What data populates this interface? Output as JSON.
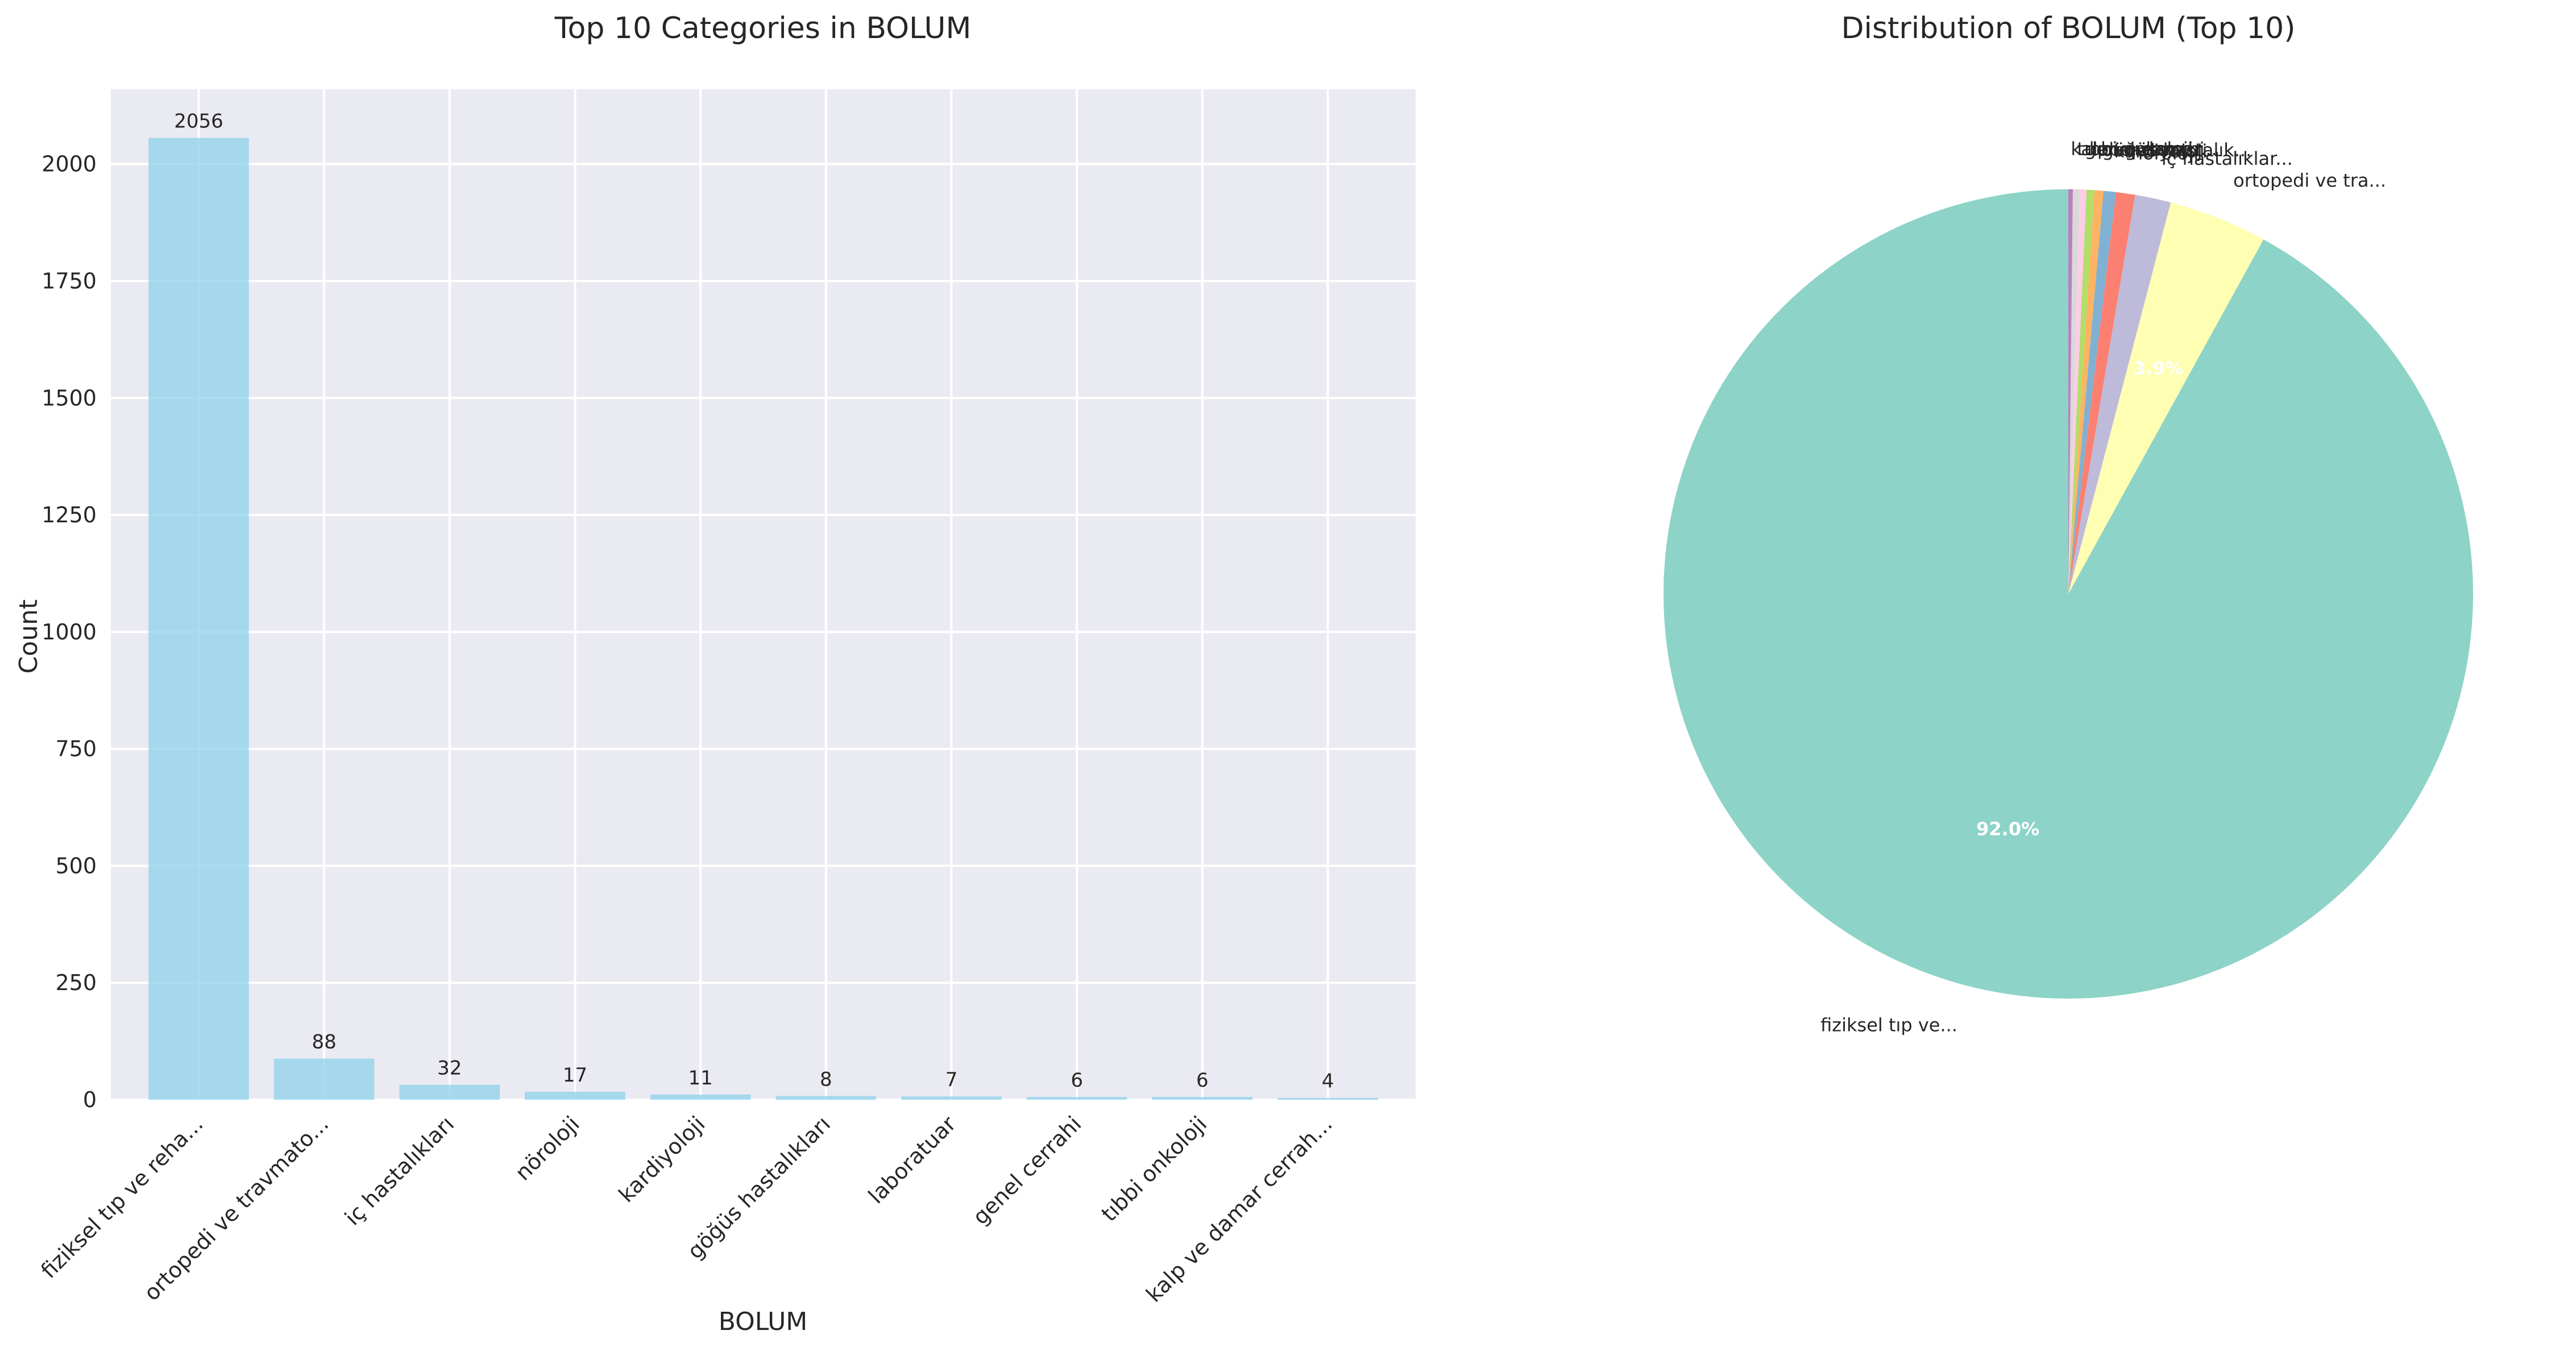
{
  "chart_data": [
    {
      "type": "bar",
      "title": "Top 10 Categories in BOLUM",
      "xlabel": "BOLUM",
      "ylabel": "Count",
      "categories": [
        "fiziksel tıp ve reha...",
        "ortopedi ve travmato...",
        "iç hastalıkları",
        "nöroloji",
        "kardiyoloji",
        "göğüs hastalıkları",
        "laboratuar",
        "genel cerrahi",
        "tıbbi onkoloji",
        "kalp ve damar cerrah..."
      ],
      "values": [
        2056,
        88,
        32,
        17,
        11,
        8,
        7,
        6,
        6,
        4
      ],
      "value_labels": [
        "2056",
        "88",
        "32",
        "17",
        "11",
        "8",
        "7",
        "6",
        "6",
        "4"
      ],
      "ylim": [
        0,
        2160
      ],
      "yticks": [
        0,
        250,
        500,
        750,
        1000,
        1250,
        1500,
        1750,
        2000
      ],
      "ytick_labels": [
        "0",
        "250",
        "500",
        "750",
        "1000",
        "1250",
        "1500",
        "1750",
        "2000"
      ],
      "grid": true,
      "bar_color": "#87CEEB"
    },
    {
      "type": "pie",
      "title": "Distribution of BOLUM (Top 10)",
      "labels": [
        "fiziksel tıp ve...",
        "ortopedi ve tra...",
        "iç hastalıklar...",
        "nöroloji",
        "kardiyoloji",
        "göğüs hastalık...",
        "laboratuar",
        "genel cerrahi",
        "tıbbi onkoloji",
        "kalp ve damar..."
      ],
      "values": [
        2056,
        88,
        32,
        17,
        11,
        8,
        7,
        6,
        6,
        4
      ],
      "percent_labels": [
        "92.0%",
        "3.9%",
        "",
        "",
        "",
        "",
        "",
        "",
        "",
        ""
      ],
      "colors": [
        "#8dd3c7",
        "#ffffb3",
        "#bebada",
        "#fb8072",
        "#80b1d3",
        "#fdb462",
        "#b3de69",
        "#fccde5",
        "#d9d9d9",
        "#bc80bd"
      ]
    }
  ]
}
